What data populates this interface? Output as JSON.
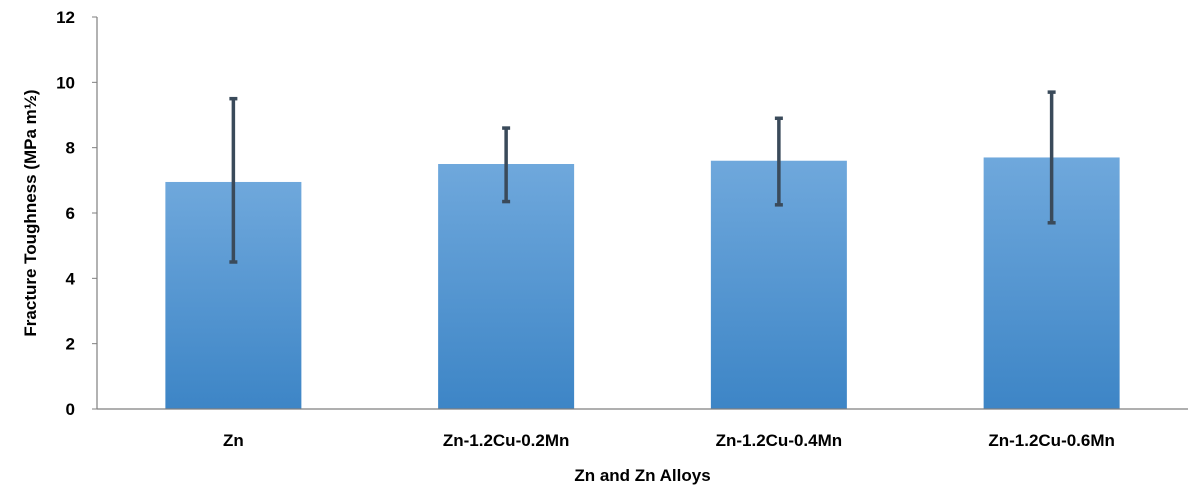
{
  "chart_data": {
    "type": "bar",
    "title": "",
    "xlabel": "Zn and Zn Alloys",
    "ylabel": "Fracture Toughness (MPa m½)",
    "categories": [
      "Zn",
      "Zn-1.2Cu-0.2Mn",
      "Zn-1.2Cu-0.4Mn",
      "Zn-1.2Cu-0.6Mn"
    ],
    "values": [
      6.95,
      7.5,
      7.6,
      7.7
    ],
    "error_low": [
      4.5,
      6.35,
      6.25,
      5.7
    ],
    "error_high": [
      9.5,
      8.6,
      8.9,
      9.7
    ],
    "ylim": [
      0,
      12
    ],
    "yticks": [
      0,
      2,
      4,
      6,
      8,
      10,
      12
    ],
    "grid": false,
    "legend": "none",
    "colors": {
      "bar_top": "#6fa8dc",
      "bar_bottom": "#3d85c6",
      "error_bar": "#3a4a5a",
      "axis": "#7f7f7f"
    }
  }
}
